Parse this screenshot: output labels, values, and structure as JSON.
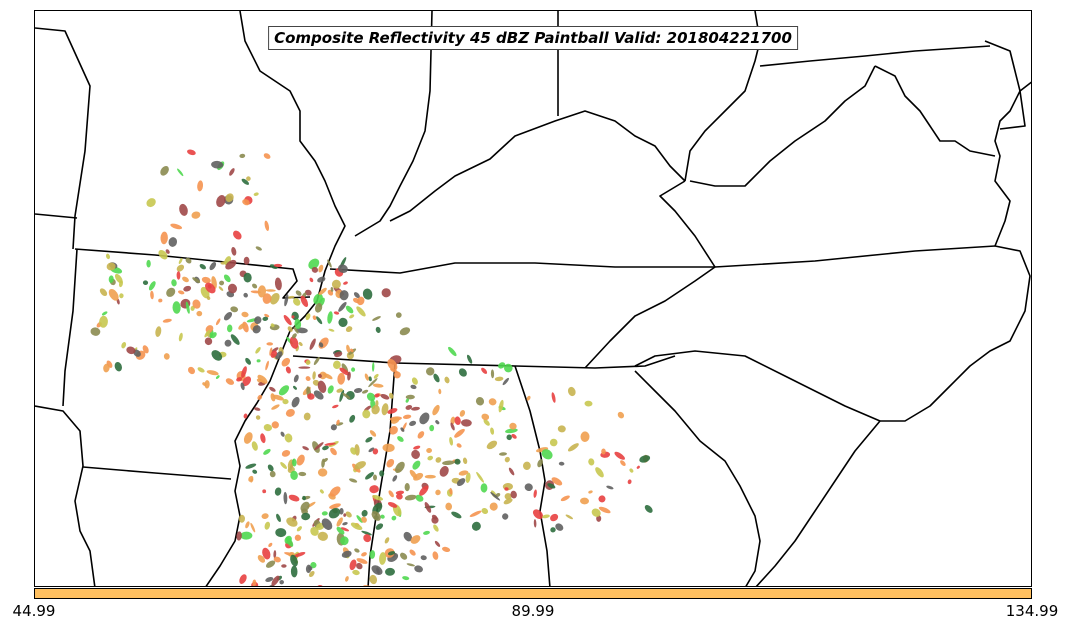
{
  "title": "Composite Reflectivity 45 dBZ Paintball Valid: 201804221700",
  "colorbar": {
    "color": "#ffc060",
    "ticks": [
      "44.99",
      "89.99",
      "134.99"
    ]
  },
  "paintball_colors": [
    "#f0a050",
    "#e84040",
    "#50d850",
    "#8b8b50",
    "#a04848",
    "#c8b450",
    "#606060",
    "#2e6e3e",
    "#f59450",
    "#c8c850"
  ],
  "map_colors": {
    "border": "#000000",
    "land": "#ffffff"
  }
}
